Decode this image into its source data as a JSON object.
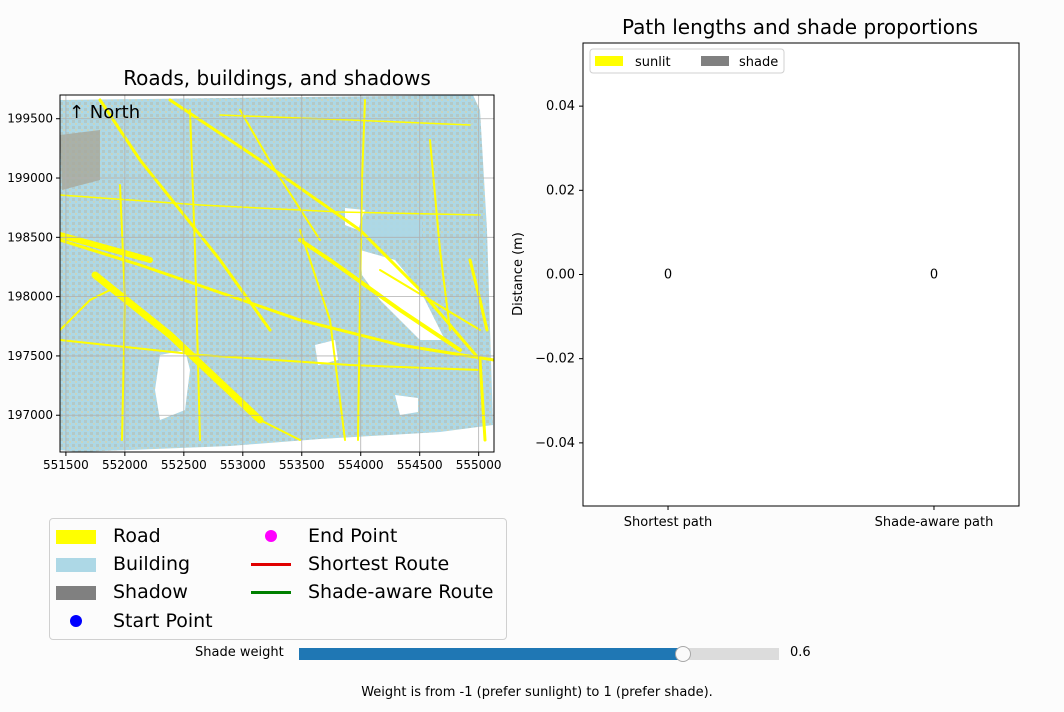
{
  "map": {
    "title": "Roads, buildings, and shadows",
    "north_label": "↑ North",
    "xlim": [
      551450,
      555130
    ],
    "ylim": [
      196690,
      199700
    ],
    "x_ticks": [
      "551500",
      "552000",
      "552500",
      "553000",
      "553500",
      "554000",
      "554500",
      "555000"
    ],
    "x_tick_values": [
      551500,
      552000,
      552500,
      553000,
      553500,
      554000,
      554500,
      555000
    ],
    "y_ticks": [
      "197000",
      "197500",
      "198000",
      "198500",
      "199000",
      "199500"
    ],
    "y_tick_values": [
      197000,
      197500,
      198000,
      198500,
      199000,
      199500
    ],
    "colors": {
      "road": "#ffff00",
      "building": "#add8e6",
      "shadow": "#808080"
    }
  },
  "legend": {
    "items": [
      {
        "label": "Road",
        "kind": "rect",
        "color": "#ffff00"
      },
      {
        "label": "Building",
        "kind": "rect",
        "color": "#add8e6"
      },
      {
        "label": "Shadow",
        "kind": "rect",
        "color": "#808080"
      },
      {
        "label": "Start Point",
        "kind": "dot",
        "color": "#0000ff"
      },
      {
        "label": "End Point",
        "kind": "dot",
        "color": "#ff00ff"
      },
      {
        "label": "Shortest Route",
        "kind": "line",
        "color": "#e00000"
      },
      {
        "label": "Shade-aware Route",
        "kind": "line",
        "color": "#008000"
      }
    ]
  },
  "chart_data": {
    "type": "bar",
    "title": "Path lengths and shade proportions",
    "xlabel": "",
    "ylabel": "Distance (m)",
    "categories": [
      "Shortest path",
      "Shade-aware path"
    ],
    "series": [
      {
        "name": "sunlit",
        "values": [
          0,
          0
        ],
        "color": "#ffff00"
      },
      {
        "name": "shade",
        "values": [
          0,
          0
        ],
        "color": "#808080"
      }
    ],
    "data_labels": [
      "0",
      "0"
    ],
    "ylim": [
      -0.055,
      0.055
    ],
    "y_ticks": [
      "−0.04",
      "−0.02",
      "0.00",
      "0.02",
      "0.04"
    ],
    "y_tick_values": [
      -0.04,
      -0.02,
      0.0,
      0.02,
      0.04
    ],
    "legend_position": "top-left",
    "grid": false
  },
  "slider": {
    "label": "Shade weight",
    "value": 0.6,
    "value_text": "0.6",
    "min": -1,
    "max": 1,
    "fill_color": "#1f77b4"
  },
  "note": "Weight is from -1 (prefer sunlight) to 1 (prefer shade)."
}
